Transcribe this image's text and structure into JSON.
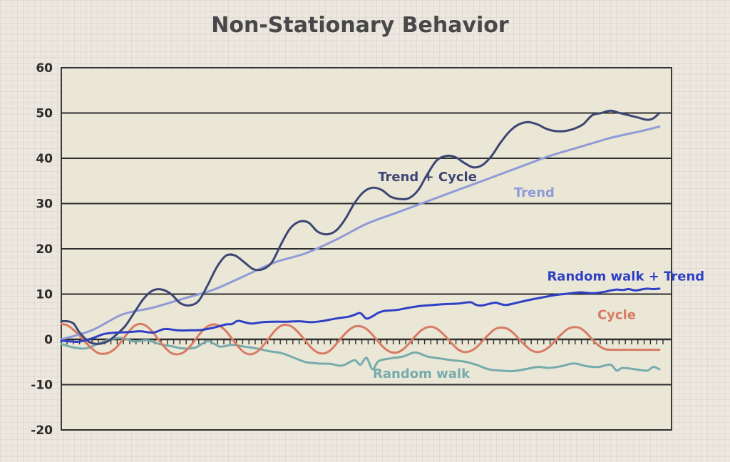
{
  "chart_data": {
    "type": "line",
    "title": "Non-Stationary Behavior",
    "xlabel": "",
    "ylabel": "",
    "xlim": [
      0,
      100
    ],
    "ylim": [
      -20,
      60
    ],
    "yticks": [
      -20,
      -10,
      0,
      10,
      20,
      30,
      40,
      50,
      60
    ],
    "colors": {
      "trend": "#8f9ad6",
      "trend_cycle": "#3c4673",
      "random_walk_trend": "#2f3fc6",
      "cycle": "#d97a63",
      "random_walk": "#77abab"
    },
    "series": [
      {
        "key": "trend",
        "name": "Trend",
        "color": "#8f9ad6",
        "x": [
          0,
          5,
          10,
          15,
          20,
          25,
          30,
          35,
          40,
          45,
          50,
          55,
          60,
          65,
          70,
          75,
          80,
          85,
          90,
          95,
          98
        ],
        "values": [
          0,
          2,
          5.5,
          7,
          9,
          11,
          14,
          17,
          19,
          22,
          25.5,
          28,
          30.5,
          33,
          35.5,
          38,
          40.5,
          42.5,
          44.5,
          46,
          47
        ]
      },
      {
        "key": "trend_cycle",
        "name": "Trend + Cycle",
        "color": "#3c4673",
        "x": [
          0,
          1,
          2,
          3,
          4.5,
          6,
          7.5,
          9,
          10.5,
          12,
          13.5,
          15,
          16.5,
          18,
          19.5,
          21,
          22.5,
          24,
          25.5,
          27,
          28.5,
          30,
          31.5,
          33,
          34.5,
          36,
          37.5,
          39,
          40.5,
          42,
          43.5,
          45,
          46.5,
          48,
          49.5,
          51,
          52.5,
          54,
          55.5,
          57,
          58.5,
          60,
          61.5,
          63,
          64.5,
          66,
          67.5,
          69,
          70.5,
          72,
          73.5,
          75,
          76.5,
          78,
          79.5,
          81,
          82.5,
          84,
          85.5,
          87,
          88.5,
          90,
          91.5,
          93,
          94.5,
          96,
          97,
          98
        ],
        "values": [
          4,
          4,
          3.5,
          1.5,
          -0.5,
          -1,
          -0.5,
          1,
          3,
          6,
          9,
          10.8,
          11,
          10,
          8,
          7.5,
          8.5,
          12,
          16,
          18.5,
          18.5,
          17,
          15.5,
          15.5,
          17,
          21,
          24.5,
          26,
          25.8,
          23.8,
          23.2,
          24,
          26.5,
          30,
          32.5,
          33.5,
          33,
          31.5,
          31,
          31.2,
          33,
          36.5,
          39.5,
          40.5,
          40.3,
          39,
          38,
          38.5,
          40.5,
          43.5,
          46,
          47.5,
          48,
          47.5,
          46.5,
          46,
          46,
          46.5,
          47.5,
          49.5,
          50,
          50.5,
          50,
          49.5,
          49,
          48.5,
          48.8,
          50
        ]
      },
      {
        "key": "random_walk_trend",
        "name": "Random walk + Trend",
        "color": "#2f3fc6",
        "x": [
          0,
          2,
          3,
          5,
          7,
          9,
          11,
          13,
          15,
          17,
          19,
          21,
          23,
          25,
          27,
          28,
          29,
          31,
          33,
          35,
          37,
          39,
          41,
          43,
          45,
          47,
          48,
          49,
          50,
          51,
          52,
          53,
          55,
          57,
          59,
          61,
          63,
          65,
          67,
          68,
          69,
          71,
          72,
          73,
          75,
          77,
          79,
          81,
          83,
          85,
          87,
          89,
          90,
          91,
          92,
          93,
          94,
          95,
          96,
          97,
          98
        ],
        "values": [
          -0.3,
          -0.5,
          -0.5,
          0.2,
          1.2,
          1.5,
          1.6,
          1.8,
          1.5,
          2.3,
          2,
          2,
          2.1,
          2.6,
          3.3,
          3.4,
          4.1,
          3.5,
          3.8,
          3.9,
          3.9,
          4,
          3.8,
          4.1,
          4.6,
          5,
          5.4,
          5.8,
          4.6,
          5.1,
          5.9,
          6.3,
          6.5,
          7,
          7.4,
          7.6,
          7.8,
          7.9,
          8.2,
          7.6,
          7.5,
          8.1,
          7.8,
          7.6,
          8.2,
          8.8,
          9.3,
          9.8,
          10.1,
          10.4,
          10.2,
          10.5,
          10.8,
          11,
          10.9,
          11.1,
          10.8,
          11,
          11.2,
          11.1,
          11.2
        ]
      },
      {
        "key": "cycle",
        "name": "Cycle",
        "color": "#d97a63",
        "x": [
          0,
          1,
          2,
          3,
          4,
          5,
          6,
          7,
          8,
          9,
          10,
          11,
          12,
          13,
          14,
          15,
          16,
          17,
          18,
          19,
          20,
          21,
          22,
          23,
          24,
          25,
          26,
          27,
          28,
          29,
          30,
          31,
          32,
          33,
          34,
          35,
          36,
          37,
          38,
          39,
          40,
          41,
          42,
          43,
          44,
          45,
          46,
          47,
          48,
          49,
          50,
          51,
          52,
          53,
          54,
          55,
          56,
          57,
          58,
          59,
          60,
          61,
          62,
          63,
          64,
          65,
          66,
          67,
          68,
          69,
          70,
          71,
          72,
          73,
          74,
          75,
          76,
          77,
          78,
          79,
          80,
          81,
          82,
          83,
          84,
          85,
          86,
          87,
          88,
          89,
          90,
          91,
          92,
          93,
          94,
          95,
          96,
          97,
          98
        ],
        "values": [
          3.4,
          3.1,
          2.1,
          0.8,
          -0.7,
          -2,
          -3,
          -3.2,
          -2.8,
          -1.8,
          -0.2,
          1.6,
          3,
          3.4,
          2.9,
          1.6,
          -0.2,
          -1.8,
          -3,
          -3.3,
          -2.9,
          -1.7,
          0,
          1.7,
          2.9,
          3.3,
          2.9,
          1.8,
          0.1,
          -1.6,
          -2.9,
          -3.3,
          -2.8,
          -1.5,
          0.2,
          1.9,
          3,
          3.2,
          2.6,
          1.3,
          -0.3,
          -1.9,
          -2.9,
          -3.1,
          -2.5,
          -1.1,
          0.5,
          1.9,
          2.8,
          2.9,
          2.3,
          1,
          -0.6,
          -2,
          -2.8,
          -2.9,
          -2.2,
          -0.9,
          0.7,
          2,
          2.7,
          2.7,
          1.9,
          0.6,
          -0.9,
          -2.2,
          -2.8,
          -2.6,
          -1.8,
          -0.4,
          1,
          2.2,
          2.6,
          2.4,
          1.5,
          0.1,
          -1.3,
          -2.4,
          -2.8,
          -2.5,
          -1.6,
          -0.2,
          1.2,
          2.3,
          2.7,
          2.5,
          1.5,
          0,
          -1.3,
          -2.1,
          -2.3,
          -2.3,
          -2.3,
          -2.3,
          -2.3,
          -2.3,
          -2.3,
          -2.3,
          -2.3
        ]
      },
      {
        "key": "random_walk",
        "name": "Random walk",
        "color": "#77abab",
        "x": [
          0,
          2,
          4,
          6,
          8,
          10,
          12,
          14,
          16,
          18,
          20,
          22,
          24,
          26,
          28,
          30,
          32,
          34,
          36,
          38,
          40,
          42,
          44,
          46,
          48,
          49,
          50,
          51,
          52,
          54,
          56,
          58,
          60,
          62,
          64,
          66,
          68,
          70,
          72,
          74,
          76,
          78,
          80,
          82,
          84,
          86,
          88,
          90,
          91,
          92,
          94,
          96,
          97,
          98
        ],
        "values": [
          -1,
          -1.8,
          -2,
          -1,
          0,
          0.3,
          -0.5,
          -0.2,
          -1,
          -1.5,
          -2,
          -1.8,
          -0.4,
          -1.6,
          -1.2,
          -1.6,
          -2,
          -2.6,
          -3,
          -4,
          -5,
          -5.3,
          -5.4,
          -5.8,
          -4.6,
          -5.6,
          -4.1,
          -6.6,
          -4.8,
          -4.2,
          -3.8,
          -2.9,
          -3.8,
          -4.2,
          -4.6,
          -4.9,
          -5.6,
          -6.6,
          -6.9,
          -7,
          -6.6,
          -6.1,
          -6.3,
          -5.9,
          -5.3,
          -5.9,
          -6.1,
          -5.6,
          -6.9,
          -6.3,
          -6.6,
          -6.9,
          -6.1,
          -6.6
        ]
      }
    ],
    "annotations": [
      {
        "series": "trend_cycle",
        "text": "Trend + Cycle",
        "x": 60,
        "y": 35
      },
      {
        "series": "trend",
        "text": "Trend",
        "x": 77.5,
        "y": 31.5
      },
      {
        "series": "random_walk_trend",
        "text": "Random walk + Trend",
        "x": 92.5,
        "y": 13
      },
      {
        "series": "cycle",
        "text": "Cycle",
        "x": 91,
        "y": 4.5
      },
      {
        "series": "random_walk",
        "text": "Random walk",
        "x": 59,
        "y": -8.5
      }
    ],
    "grid": true
  }
}
